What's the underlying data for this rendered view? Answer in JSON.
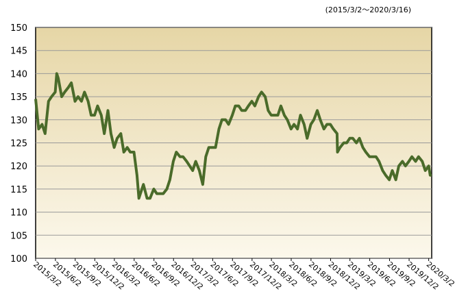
{
  "chart_data": {
    "type": "line",
    "subtitle": "(2015/3/2～2020/3/16)",
    "x": [
      "2015/3/2",
      "2015/3/16",
      "2015/4/1",
      "2015/4/15",
      "2015/5/1",
      "2015/5/15",
      "2015/6/1",
      "2015/6/8",
      "2015/6/15",
      "2015/7/1",
      "2015/7/15",
      "2015/8/1",
      "2015/8/15",
      "2015/9/1",
      "2015/9/15",
      "2015/10/1",
      "2015/10/15",
      "2015/11/1",
      "2015/11/15",
      "2015/12/1",
      "2015/12/15",
      "2016/1/1",
      "2016/1/15",
      "2016/2/1",
      "2016/2/15",
      "2016/3/1",
      "2016/3/15",
      "2016/4/1",
      "2016/4/15",
      "2016/5/1",
      "2016/5/15",
      "2016/6/1",
      "2016/6/15",
      "2016/6/24",
      "2016/7/1",
      "2016/7/15",
      "2016/8/1",
      "2016/8/15",
      "2016/9/1",
      "2016/9/15",
      "2016/10/1",
      "2016/10/15",
      "2016/11/1",
      "2016/11/15",
      "2016/12/1",
      "2016/12/15",
      "2017/1/1",
      "2017/1/15",
      "2017/2/1",
      "2017/2/15",
      "2017/3/1",
      "2017/3/15",
      "2017/4/1",
      "2017/4/17",
      "2017/5/1",
      "2017/5/15",
      "2017/6/1",
      "2017/6/15",
      "2017/7/1",
      "2017/7/15",
      "2017/8/1",
      "2017/8/15",
      "2017/9/1",
      "2017/9/15",
      "2017/10/1",
      "2017/10/15",
      "2017/11/1",
      "2017/11/15",
      "2017/12/1",
      "2017/12/15",
      "2018/1/1",
      "2018/1/15",
      "2018/2/1",
      "2018/2/15",
      "2018/3/1",
      "2018/3/15",
      "2018/4/1",
      "2018/4/15",
      "2018/5/1",
      "2018/5/15",
      "2018/6/1",
      "2018/6/15",
      "2018/7/1",
      "2018/7/15",
      "2018/8/1",
      "2018/8/15",
      "2018/9/1",
      "2018/9/15",
      "2018/10/1",
      "2018/10/15",
      "2018/11/1",
      "2018/11/15",
      "2018/12/1",
      "2018/12/15",
      "2019/1/1",
      "2019/1/3",
      "2019/1/15",
      "2019/2/1",
      "2019/2/15",
      "2019/3/1",
      "2019/3/15",
      "2019/4/1",
      "2019/4/15",
      "2019/5/1",
      "2019/5/15",
      "2019/6/1",
      "2019/6/15",
      "2019/7/1",
      "2019/7/15",
      "2019/8/1",
      "2019/8/15",
      "2019/9/1",
      "2019/9/15",
      "2019/10/1",
      "2019/10/15",
      "2019/11/1",
      "2019/11/15",
      "2019/12/1",
      "2019/12/15",
      "2020/1/1",
      "2020/1/15",
      "2020/2/1",
      "2020/2/15",
      "2020/3/2",
      "2020/3/9",
      "2020/3/16"
    ],
    "series": [
      {
        "color": "#4a6b2a",
        "values": [
          134.5,
          128,
          129,
          127,
          134,
          135,
          136,
          140,
          139,
          135,
          136,
          137,
          138,
          134,
          135,
          134,
          136,
          134,
          131,
          131,
          133,
          131,
          127,
          132,
          127,
          124,
          126,
          127,
          123,
          124,
          123,
          123,
          118,
          113,
          114,
          116,
          113,
          113,
          115,
          114,
          114,
          114,
          115,
          117,
          121,
          123,
          122,
          122,
          121,
          120,
          119,
          121,
          119,
          116,
          122,
          124,
          124,
          124,
          128,
          130,
          130,
          129,
          131,
          133,
          133,
          132,
          132,
          133,
          134,
          133,
          135,
          136,
          135,
          132,
          131,
          131,
          131,
          133,
          131,
          130,
          128,
          129,
          128,
          131,
          129,
          126,
          129,
          130,
          132,
          130,
          128,
          129,
          129,
          128,
          127,
          123,
          124,
          125,
          125,
          126,
          126,
          125,
          126,
          124,
          123,
          122,
          122,
          122,
          121,
          119,
          118,
          117,
          119,
          117,
          120,
          121,
          120,
          121,
          122,
          121,
          122,
          121,
          119,
          120,
          118,
          118
        ]
      }
    ],
    "xlim": [
      "2015/3/2",
      "2020/3/16"
    ],
    "xticks": [
      "2015/3/2",
      "2015/6/2",
      "2015/9/2",
      "2015/12/2",
      "2016/3/2",
      "2016/6/2",
      "2016/9/2",
      "2016/12/2",
      "2017/3/2",
      "2017/6/2",
      "2017/9/2",
      "2017/12/2",
      "2018/3/2",
      "2018/6/2",
      "2018/9/2",
      "2018/12/2",
      "2019/3/2",
      "2019/6/2",
      "2019/9/2",
      "2019/12/2",
      "2020/3/2"
    ],
    "ylim": [
      100,
      150
    ],
    "yticks": [
      100,
      105,
      110,
      115,
      120,
      125,
      130,
      135,
      140,
      145,
      150
    ],
    "grid": true
  }
}
